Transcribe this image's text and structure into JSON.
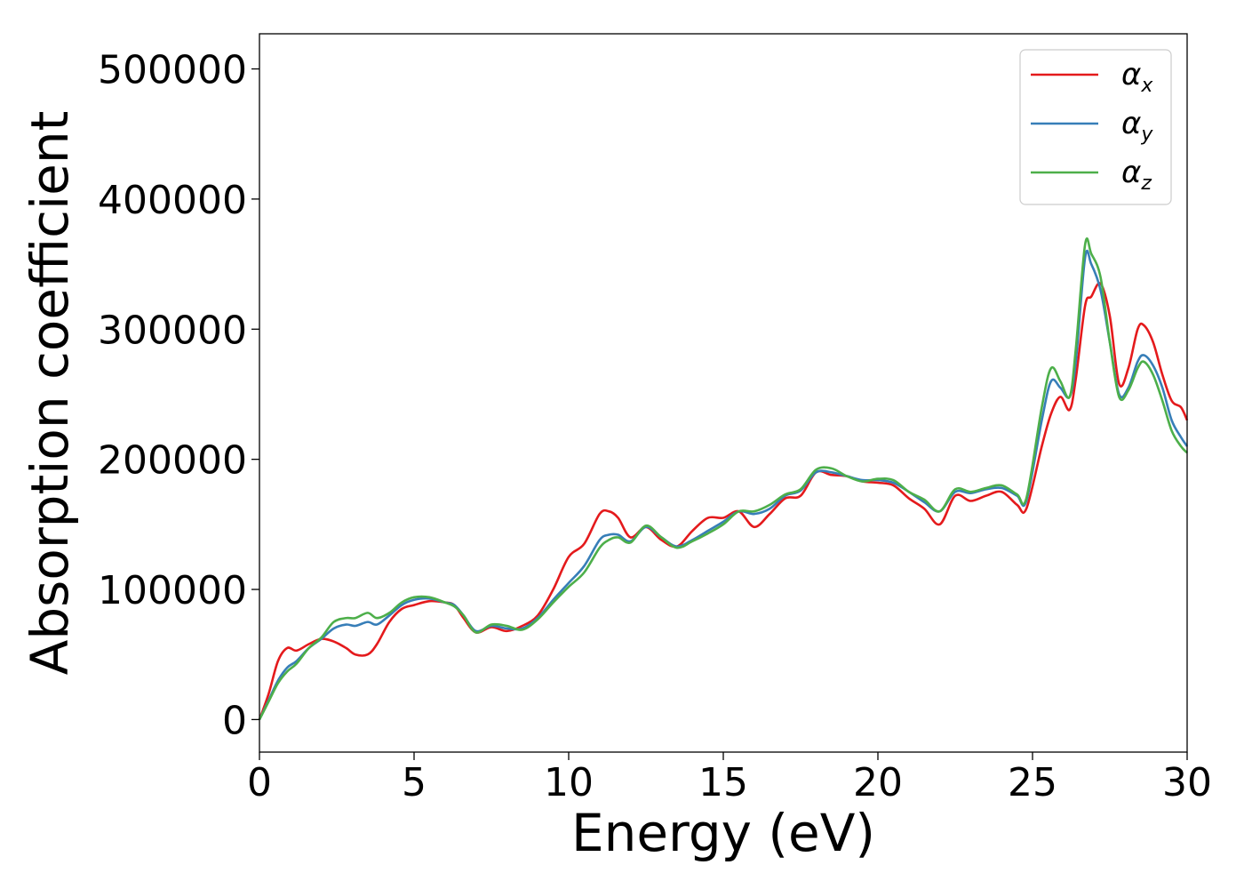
{
  "chart_data": {
    "type": "line",
    "xlabel": "Energy (eV)",
    "ylabel": "Absorption coefficient",
    "xlim": [
      0,
      30
    ],
    "ylim": [
      -25000,
      527000
    ],
    "xticks": [
      "0",
      "5",
      "10",
      "15",
      "20",
      "25",
      "30"
    ],
    "yticks": [
      "0",
      "100000",
      "200000",
      "300000",
      "400000",
      "500000"
    ],
    "grid": false,
    "legend_position": "top-right",
    "series": [
      {
        "name": "α_x",
        "legend_base": "α",
        "legend_sub": "x",
        "color": "#e41a1c",
        "x": [
          0,
          0.3,
          0.6,
          0.9,
          1.2,
          1.6,
          2.0,
          2.4,
          2.8,
          3.1,
          3.5,
          3.8,
          4.2,
          4.6,
          5.0,
          5.5,
          6.0,
          6.3,
          6.6,
          7.0,
          7.5,
          8.0,
          8.5,
          9.0,
          9.5,
          10.0,
          10.5,
          11.0,
          11.3,
          11.6,
          12.0,
          12.5,
          13.0,
          13.5,
          14.0,
          14.5,
          15.0,
          15.5,
          16.0,
          16.5,
          17.0,
          17.5,
          18.0,
          18.5,
          19.0,
          19.5,
          20.0,
          20.5,
          21.0,
          21.5,
          22.0,
          22.5,
          23.0,
          23.5,
          24.0,
          24.5,
          24.8,
          25.3,
          25.6,
          25.9,
          26.2,
          26.4,
          26.7,
          26.9,
          27.2,
          27.5,
          27.8,
          28.1,
          28.4,
          28.6,
          28.9,
          29.2,
          29.5,
          29.8,
          30.0
        ],
        "values": [
          0,
          20000,
          45000,
          55000,
          53000,
          58000,
          62000,
          60000,
          55000,
          50000,
          50000,
          58000,
          75000,
          85000,
          88000,
          91000,
          90000,
          88000,
          78000,
          67000,
          71000,
          68000,
          72000,
          80000,
          100000,
          125000,
          135000,
          158000,
          160000,
          155000,
          140000,
          148000,
          138000,
          133000,
          145000,
          155000,
          155000,
          160000,
          148000,
          158000,
          170000,
          172000,
          190000,
          188000,
          187000,
          183000,
          182000,
          180000,
          170000,
          162000,
          150000,
          172000,
          168000,
          172000,
          175000,
          165000,
          162000,
          210000,
          235000,
          248000,
          238000,
          262000,
          318000,
          325000,
          335000,
          310000,
          258000,
          270000,
          300000,
          303000,
          290000,
          265000,
          245000,
          240000,
          230000
        ]
      },
      {
        "name": "α_y",
        "legend_base": "α",
        "legend_sub": "y",
        "color": "#377eb8",
        "x": [
          0,
          0.3,
          0.6,
          0.9,
          1.2,
          1.6,
          2.0,
          2.4,
          2.8,
          3.1,
          3.5,
          3.8,
          4.2,
          4.6,
          5.0,
          5.5,
          6.0,
          6.3,
          6.6,
          7.0,
          7.5,
          8.0,
          8.5,
          9.0,
          9.5,
          10.0,
          10.5,
          11.0,
          11.3,
          11.6,
          12.0,
          12.5,
          13.0,
          13.5,
          14.0,
          14.5,
          15.0,
          15.5,
          16.0,
          16.5,
          17.0,
          17.5,
          18.0,
          18.5,
          19.0,
          19.5,
          20.0,
          20.5,
          21.0,
          21.5,
          22.0,
          22.5,
          23.0,
          23.5,
          24.0,
          24.5,
          24.8,
          25.3,
          25.6,
          25.9,
          26.2,
          26.4,
          26.7,
          26.9,
          27.2,
          27.5,
          27.8,
          28.1,
          28.4,
          28.6,
          28.9,
          29.2,
          29.5,
          29.8,
          30.0
        ],
        "values": [
          0,
          15000,
          30000,
          40000,
          45000,
          55000,
          62000,
          70000,
          73000,
          72000,
          75000,
          73000,
          80000,
          88000,
          92000,
          93000,
          90000,
          88000,
          80000,
          68000,
          72000,
          70000,
          70000,
          78000,
          92000,
          105000,
          118000,
          138000,
          142000,
          142000,
          137000,
          148000,
          140000,
          133000,
          138000,
          145000,
          152000,
          160000,
          158000,
          162000,
          172000,
          176000,
          190000,
          190000,
          187000,
          184000,
          184000,
          182000,
          175000,
          167000,
          160000,
          175000,
          174000,
          177000,
          178000,
          172000,
          168000,
          230000,
          260000,
          255000,
          248000,
          275000,
          355000,
          350000,
          330000,
          290000,
          250000,
          255000,
          275000,
          280000,
          272000,
          255000,
          230000,
          217000,
          210000
        ]
      },
      {
        "name": "α_z",
        "legend_base": "α",
        "legend_sub": "z",
        "color": "#4daf4a",
        "x": [
          0,
          0.3,
          0.6,
          0.9,
          1.2,
          1.6,
          2.0,
          2.4,
          2.8,
          3.1,
          3.5,
          3.8,
          4.2,
          4.6,
          5.0,
          5.5,
          6.0,
          6.3,
          6.6,
          7.0,
          7.5,
          8.0,
          8.5,
          9.0,
          9.5,
          10.0,
          10.5,
          11.0,
          11.3,
          11.6,
          12.0,
          12.5,
          13.0,
          13.5,
          14.0,
          14.5,
          15.0,
          15.5,
          16.0,
          16.5,
          17.0,
          17.5,
          18.0,
          18.5,
          19.0,
          19.5,
          20.0,
          20.5,
          21.0,
          21.5,
          22.0,
          22.5,
          23.0,
          23.5,
          24.0,
          24.5,
          24.8,
          25.3,
          25.6,
          25.9,
          26.2,
          26.4,
          26.7,
          26.9,
          27.2,
          27.5,
          27.8,
          28.1,
          28.4,
          28.6,
          28.9,
          29.2,
          29.5,
          29.8,
          30.0
        ],
        "values": [
          0,
          14000,
          28000,
          37000,
          43000,
          55000,
          63000,
          75000,
          78000,
          78000,
          82000,
          78000,
          82000,
          90000,
          94000,
          94000,
          90000,
          87000,
          80000,
          67000,
          73000,
          72000,
          69000,
          77000,
          90000,
          102000,
          113000,
          132000,
          138000,
          140000,
          136000,
          149000,
          140000,
          132000,
          137000,
          143000,
          150000,
          160000,
          160000,
          165000,
          173000,
          177000,
          192000,
          193000,
          187000,
          183000,
          185000,
          184000,
          175000,
          169000,
          160000,
          177000,
          175000,
          178000,
          180000,
          173000,
          170000,
          240000,
          270000,
          260000,
          248000,
          285000,
          365000,
          358000,
          340000,
          290000,
          248000,
          253000,
          270000,
          275000,
          265000,
          245000,
          222000,
          210000,
          205000
        ]
      }
    ]
  }
}
